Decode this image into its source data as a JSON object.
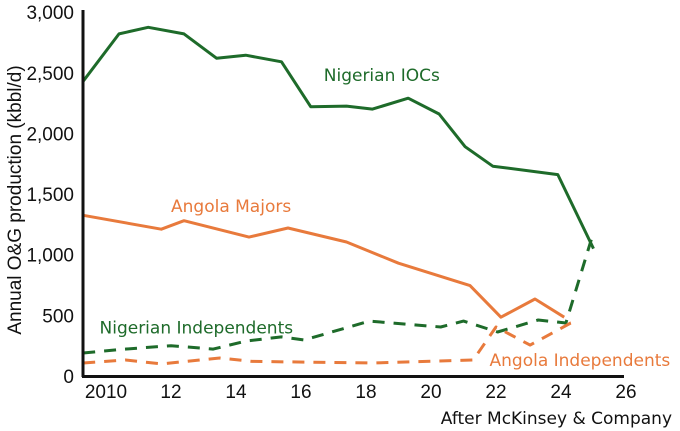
{
  "chart_data": {
    "type": "line",
    "title": "",
    "xlabel": "",
    "ylabel": "Annual O&G production (kbbl/d)",
    "source_note": "After McKinsey & Company",
    "xlim": [
      2009.3,
      2026
    ],
    "ylim": [
      0,
      3000
    ],
    "grid": false,
    "x_ticks": [
      2010,
      2012,
      2014,
      2016,
      2018,
      2020,
      2022,
      2024,
      2026
    ],
    "x_tick_labels": [
      "2010",
      "12",
      "14",
      "16",
      "18",
      "20",
      "22",
      "24",
      "26"
    ],
    "y_ticks": [
      0,
      500,
      1000,
      1500,
      2000,
      2500,
      3000
    ],
    "y_tick_labels": [
      "0",
      "500",
      "1,000",
      "1,500",
      "2,000",
      "2,500",
      "3,000"
    ],
    "colors": {
      "green": "#1e6b2a",
      "orange": "#e87a3c",
      "axis": "#111111"
    },
    "series": [
      {
        "name": "Nigerian IOCs",
        "color": "#1e6b2a",
        "style": "solid",
        "x": [
          2009.3,
          2010.4,
          2011.3,
          2012.4,
          2013.4,
          2014.3,
          2015.4,
          2016.3,
          2017.4,
          2018.2,
          2019.3,
          2020.25,
          2021.05,
          2021.9,
          2023.9,
          2025.0
        ],
        "y": [
          2430,
          2820,
          2875,
          2820,
          2620,
          2645,
          2590,
          2220,
          2225,
          2200,
          2290,
          2160,
          1890,
          1730,
          1660,
          1050
        ]
      },
      {
        "name": "Angola Majors",
        "color": "#e87a3c",
        "style": "solid",
        "x": [
          2009.3,
          2011.7,
          2012.4,
          2014.4,
          2015.6,
          2017.4,
          2019.0,
          2021.2,
          2022.15,
          2023.2,
          2024.1
        ],
        "y": [
          1325,
          1210,
          1280,
          1145,
          1220,
          1105,
          930,
          745,
          485,
          635,
          485
        ]
      },
      {
        "name": "Nigerian Independents",
        "color": "#1e6b2a",
        "style": "dashed",
        "x": [
          2009.3,
          2010.5,
          2012.0,
          2013.3,
          2014.3,
          2015.4,
          2016.1,
          2018.1,
          2020.3,
          2021.0,
          2022.05,
          2023.3,
          2024.15,
          2025.0
        ],
        "y": [
          190,
          220,
          250,
          222,
          288,
          322,
          297,
          453,
          404,
          453,
          363,
          462,
          437,
          1185
        ]
      },
      {
        "name": "Angola Independents",
        "color": "#e87a3c",
        "style": "dashed",
        "x": [
          2009.3,
          2010.6,
          2011.7,
          2013.5,
          2014.5,
          2018.2,
          2021.3,
          2022.0,
          2023.05,
          2024.3,
          2024.5
        ],
        "y": [
          107,
          132,
          100,
          148,
          120,
          107,
          132,
          404,
          255,
          437,
          453
        ]
      }
    ],
    "annotations": [
      {
        "text": "Nigerian IOCs",
        "series": "Nigerian IOCs",
        "x": 2016.7,
        "y": 2480
      },
      {
        "text": "Angola Majors",
        "series": "Angola Majors",
        "x": 2012.0,
        "y": 1400
      },
      {
        "text": "Nigerian Independents",
        "series": "Nigerian Independents",
        "x": 2009.8,
        "y": 400
      },
      {
        "text": "Angola Independents",
        "series": "Angola Independents",
        "x": 2021.8,
        "y": 130
      }
    ]
  }
}
